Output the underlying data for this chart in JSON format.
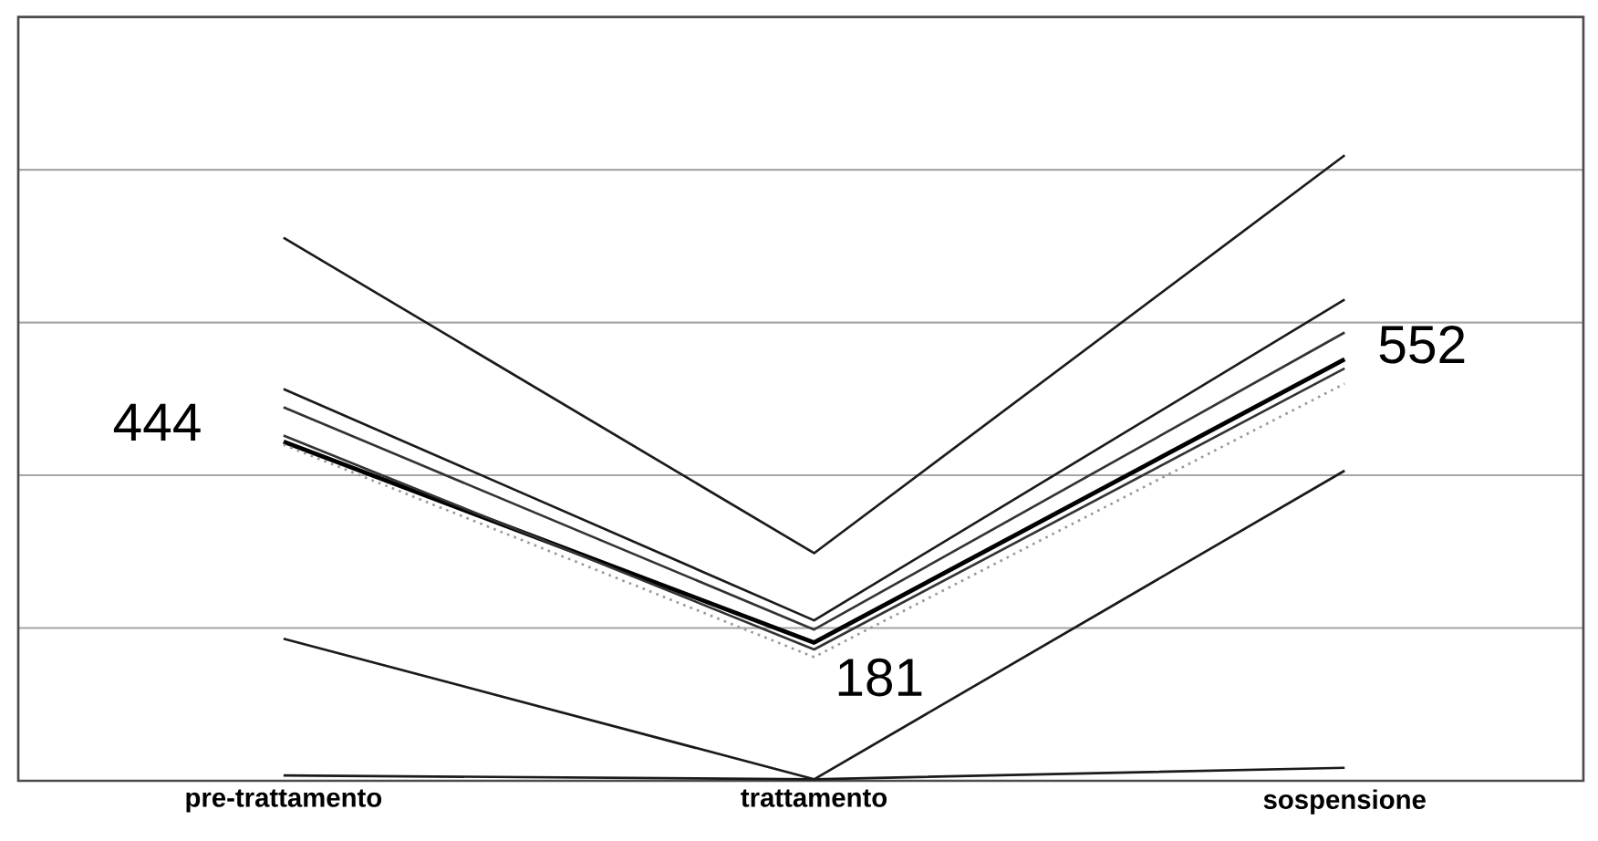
{
  "chart_data": {
    "type": "line",
    "grid": "y",
    "marker": "none",
    "categories": [
      "pre-trattamento",
      "trattamento",
      "sospensione"
    ],
    "ylim": [
      0,
      1000
    ],
    "yticks": [
      {
        "value": 0,
        "label": null
      },
      {
        "value": 200,
        "label": null
      },
      {
        "value": 400,
        "label": null
      },
      {
        "value": 600,
        "label": null
      },
      {
        "value": 800,
        "label": null
      },
      {
        "value": 1000,
        "label": null
      }
    ],
    "series": [
      {
        "color": "#1a1a1a",
        "values": [
          711,
          298,
          819
        ]
      },
      {
        "color": "#1a1a1a",
        "values": [
          513,
          210,
          630
        ]
      },
      {
        "color": "#333333",
        "values": [
          489,
          198,
          587
        ]
      },
      {
        "color": "#000000",
        "values": [
          444,
          181,
          552
        ],
        "value_labels": [
          "444",
          "181",
          "552"
        ]
      },
      {
        "color": "#333333",
        "values": [
          452,
          172,
          540
        ]
      },
      {
        "color": "#999999",
        "values": [
          440,
          162,
          520
        ],
        "line_style": "dotted"
      },
      {
        "color": "#1a1a1a",
        "values": [
          186,
          2,
          406
        ]
      },
      {
        "color": "#1a1a1a",
        "values": [
          7,
          2,
          17
        ]
      }
    ]
  }
}
